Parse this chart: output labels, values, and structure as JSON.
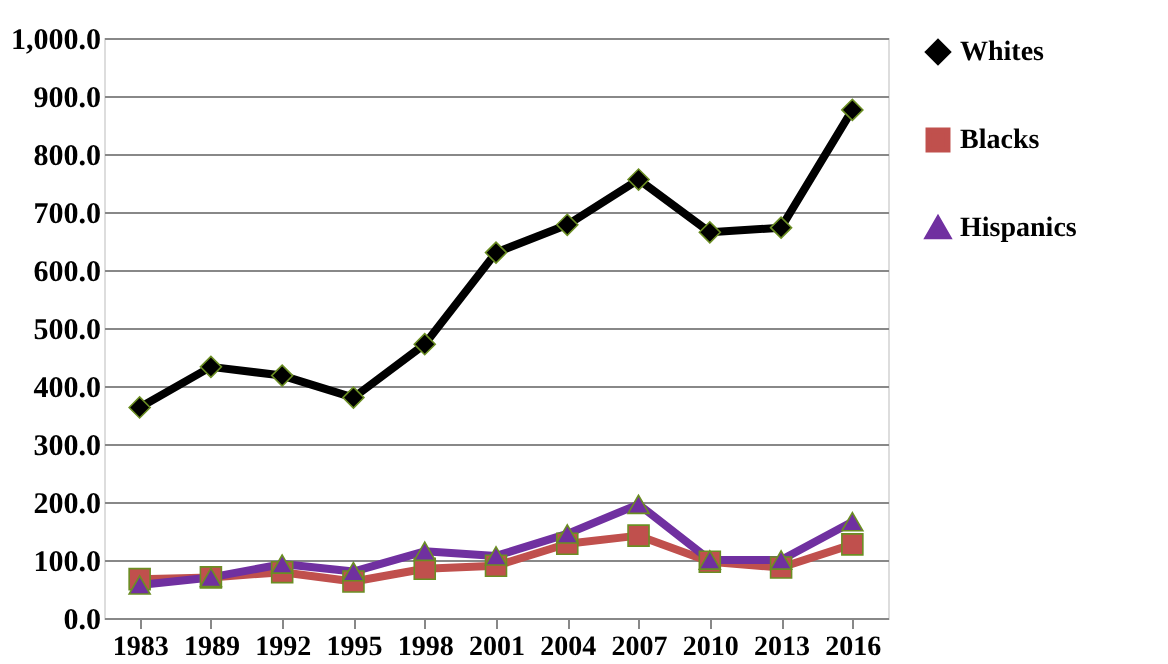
{
  "chart_data": {
    "type": "line",
    "categories": [
      "1983",
      "1989",
      "1992",
      "1995",
      "1998",
      "2001",
      "2004",
      "2007",
      "2010",
      "2013",
      "2016"
    ],
    "series": [
      {
        "name": "Whites",
        "color": "#000000",
        "marker": "diamond",
        "values": [
          363,
          433,
          418,
          380,
          472,
          630,
          678,
          756,
          665,
          673,
          876
        ]
      },
      {
        "name": "Blacks",
        "color": "#c0504d",
        "marker": "square",
        "values": [
          67,
          70,
          79,
          63,
          85,
          90,
          128,
          142,
          97,
          87,
          127
        ]
      },
      {
        "name": "Hispanics",
        "color": "#7030a0",
        "marker": "triangle",
        "values": [
          57,
          70,
          93,
          80,
          115,
          107,
          145,
          196,
          100,
          100,
          166
        ]
      }
    ],
    "ylim": [
      0,
      1000
    ],
    "yticks": [
      {
        "value": 0,
        "label": "0.0"
      },
      {
        "value": 100,
        "label": "100.0"
      },
      {
        "value": 200,
        "label": "200.0"
      },
      {
        "value": 300,
        "label": "300.0"
      },
      {
        "value": 400,
        "label": "400.0"
      },
      {
        "value": 500,
        "label": "500.0"
      },
      {
        "value": 600,
        "label": "600.0"
      },
      {
        "value": 700,
        "label": "700.0"
      },
      {
        "value": 800,
        "label": "800.0"
      },
      {
        "value": 900,
        "label": "900.0"
      },
      {
        "value": 1000,
        "label": "1,000.0"
      }
    ],
    "grid": "y",
    "legend": "right",
    "line_style": "solid"
  }
}
